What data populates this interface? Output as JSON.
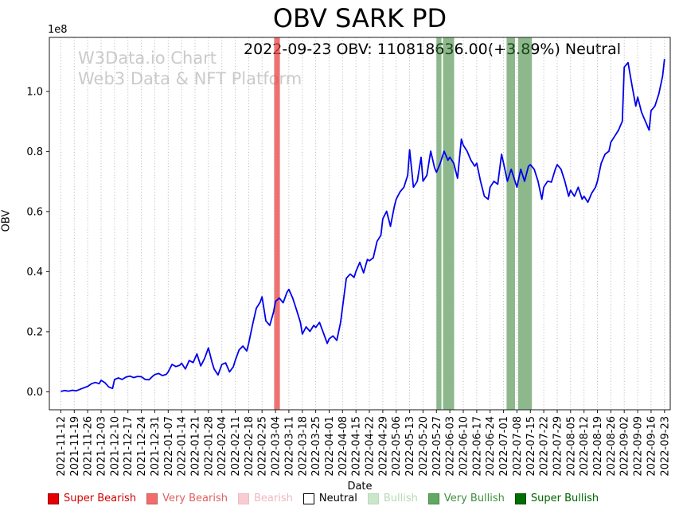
{
  "title": "OBV SARK PD",
  "annotation": "2022-09-23 OBV: 110818636.00(+3.89%) Neutral",
  "watermark": {
    "line1": "W3Data.io Chart",
    "line2": "Web3 Data & NFT Platform"
  },
  "chart_data": {
    "type": "line",
    "title": "OBV SARK PD",
    "xlabel": "Date",
    "ylabel": "OBV",
    "offset_text": "1e8",
    "grid": "vertical-dotted",
    "grid_color": "#ababab",
    "x_unit": "days since 2021-11-12",
    "x_tick_interval_days": 7,
    "xlim": [
      -6,
      318
    ],
    "ylim": [
      -0.06,
      1.18
    ],
    "y_ticks": [
      0.0,
      0.2,
      0.4,
      0.6,
      0.8,
      1.0
    ],
    "y_tick_labels": [
      "0.0",
      "0.2",
      "0.4",
      "0.6",
      "0.8",
      "1.0"
    ],
    "x_tick_labels": [
      "2021-11-12",
      "2021-11-19",
      "2021-11-26",
      "2021-12-03",
      "2021-12-10",
      "2021-12-17",
      "2021-12-24",
      "2021-12-31",
      "2022-01-07",
      "2022-01-14",
      "2022-01-21",
      "2022-01-28",
      "2022-02-04",
      "2022-02-11",
      "2022-02-18",
      "2022-02-25",
      "2022-03-04",
      "2022-03-11",
      "2022-03-18",
      "2022-03-25",
      "2022-04-01",
      "2022-04-08",
      "2022-04-15",
      "2022-04-22",
      "2022-04-29",
      "2022-05-06",
      "2022-05-13",
      "2022-05-20",
      "2022-05-27",
      "2022-06-03",
      "2022-06-10",
      "2022-06-17",
      "2022-06-24",
      "2022-07-01",
      "2022-07-08",
      "2022-07-15",
      "2022-07-22",
      "2022-07-29",
      "2022-08-05",
      "2022-08-12",
      "2022-08-19",
      "2022-08-26",
      "2022-09-02",
      "2022-09-09",
      "2022-09-16",
      "2022-09-23"
    ],
    "series": [
      {
        "name": "OBV",
        "color": "#0000ee",
        "value_scale": "1e8",
        "last_value": 110818636.0,
        "last_change_pct": 3.89,
        "last_signal": "Neutral",
        "points": [
          [
            0,
            0.001
          ],
          [
            2,
            0.004
          ],
          [
            4,
            0.002
          ],
          [
            6,
            0.005
          ],
          [
            8,
            0.003
          ],
          [
            10,
            0.008
          ],
          [
            12,
            0.013
          ],
          [
            14,
            0.018
          ],
          [
            16,
            0.027
          ],
          [
            18,
            0.031
          ],
          [
            20,
            0.027
          ],
          [
            21,
            0.038
          ],
          [
            23,
            0.03
          ],
          [
            25,
            0.016
          ],
          [
            27,
            0.011
          ],
          [
            28,
            0.041
          ],
          [
            30,
            0.046
          ],
          [
            32,
            0.041
          ],
          [
            34,
            0.049
          ],
          [
            36,
            0.052
          ],
          [
            38,
            0.047
          ],
          [
            40,
            0.051
          ],
          [
            42,
            0.05
          ],
          [
            44,
            0.041
          ],
          [
            46,
            0.04
          ],
          [
            48,
            0.052
          ],
          [
            49,
            0.057
          ],
          [
            51,
            0.061
          ],
          [
            53,
            0.054
          ],
          [
            55,
            0.058
          ],
          [
            56,
            0.066
          ],
          [
            58,
            0.091
          ],
          [
            60,
            0.084
          ],
          [
            62,
            0.088
          ],
          [
            63,
            0.095
          ],
          [
            65,
            0.076
          ],
          [
            67,
            0.104
          ],
          [
            69,
            0.097
          ],
          [
            71,
            0.126
          ],
          [
            73,
            0.086
          ],
          [
            75,
            0.111
          ],
          [
            77,
            0.146
          ],
          [
            79,
            0.096
          ],
          [
            80,
            0.076
          ],
          [
            82,
            0.056
          ],
          [
            84,
            0.091
          ],
          [
            86,
            0.096
          ],
          [
            88,
            0.066
          ],
          [
            90,
            0.083
          ],
          [
            91,
            0.104
          ],
          [
            93,
            0.139
          ],
          [
            95,
            0.152
          ],
          [
            97,
            0.136
          ],
          [
            98,
            0.161
          ],
          [
            100,
            0.222
          ],
          [
            102,
            0.278
          ],
          [
            104,
            0.298
          ],
          [
            105,
            0.316
          ],
          [
            107,
            0.236
          ],
          [
            109,
            0.221
          ],
          [
            111,
            0.266
          ],
          [
            112,
            0.301
          ],
          [
            114,
            0.312
          ],
          [
            116,
            0.296
          ],
          [
            118,
            0.331
          ],
          [
            119,
            0.341
          ],
          [
            121,
            0.312
          ],
          [
            123,
            0.272
          ],
          [
            125,
            0.231
          ],
          [
            126,
            0.192
          ],
          [
            128,
            0.216
          ],
          [
            130,
            0.201
          ],
          [
            132,
            0.221
          ],
          [
            133,
            0.214
          ],
          [
            135,
            0.231
          ],
          [
            137,
            0.196
          ],
          [
            139,
            0.161
          ],
          [
            140,
            0.176
          ],
          [
            142,
            0.186
          ],
          [
            144,
            0.171
          ],
          [
            146,
            0.231
          ],
          [
            147,
            0.281
          ],
          [
            149,
            0.378
          ],
          [
            151,
            0.392
          ],
          [
            153,
            0.381
          ],
          [
            154,
            0.401
          ],
          [
            156,
            0.431
          ],
          [
            158,
            0.396
          ],
          [
            160,
            0.441
          ],
          [
            161,
            0.436
          ],
          [
            163,
            0.446
          ],
          [
            165,
            0.501
          ],
          [
            167,
            0.521
          ],
          [
            168,
            0.576
          ],
          [
            170,
            0.601
          ],
          [
            172,
            0.551
          ],
          [
            174,
            0.616
          ],
          [
            175,
            0.641
          ],
          [
            177,
            0.666
          ],
          [
            179,
            0.681
          ],
          [
            181,
            0.721
          ],
          [
            182,
            0.806
          ],
          [
            184,
            0.681
          ],
          [
            186,
            0.701
          ],
          [
            188,
            0.781
          ],
          [
            189,
            0.701
          ],
          [
            191,
            0.721
          ],
          [
            193,
            0.801
          ],
          [
            195,
            0.746
          ],
          [
            196,
            0.731
          ],
          [
            198,
            0.761
          ],
          [
            200,
            0.801
          ],
          [
            202,
            0.771
          ],
          [
            203,
            0.781
          ],
          [
            205,
            0.761
          ],
          [
            207,
            0.711
          ],
          [
            209,
            0.841
          ],
          [
            210,
            0.821
          ],
          [
            212,
            0.801
          ],
          [
            214,
            0.771
          ],
          [
            216,
            0.751
          ],
          [
            217,
            0.761
          ],
          [
            219,
            0.701
          ],
          [
            221,
            0.651
          ],
          [
            223,
            0.641
          ],
          [
            224,
            0.681
          ],
          [
            226,
            0.701
          ],
          [
            228,
            0.691
          ],
          [
            230,
            0.791
          ],
          [
            231,
            0.761
          ],
          [
            233,
            0.701
          ],
          [
            235,
            0.741
          ],
          [
            237,
            0.701
          ],
          [
            238,
            0.681
          ],
          [
            240,
            0.741
          ],
          [
            242,
            0.701
          ],
          [
            244,
            0.751
          ],
          [
            245,
            0.756
          ],
          [
            247,
            0.741
          ],
          [
            249,
            0.701
          ],
          [
            251,
            0.641
          ],
          [
            252,
            0.681
          ],
          [
            254,
            0.701
          ],
          [
            256,
            0.698
          ],
          [
            258,
            0.741
          ],
          [
            259,
            0.756
          ],
          [
            261,
            0.741
          ],
          [
            263,
            0.701
          ],
          [
            265,
            0.651
          ],
          [
            266,
            0.671
          ],
          [
            268,
            0.651
          ],
          [
            270,
            0.681
          ],
          [
            272,
            0.641
          ],
          [
            273,
            0.651
          ],
          [
            275,
            0.631
          ],
          [
            277,
            0.661
          ],
          [
            279,
            0.681
          ],
          [
            280,
            0.701
          ],
          [
            282,
            0.761
          ],
          [
            284,
            0.791
          ],
          [
            286,
            0.801
          ],
          [
            287,
            0.831
          ],
          [
            289,
            0.851
          ],
          [
            291,
            0.871
          ],
          [
            293,
            0.901
          ],
          [
            294,
            1.081
          ],
          [
            296,
            1.096
          ],
          [
            298,
            1.021
          ],
          [
            300,
            0.951
          ],
          [
            301,
            0.981
          ],
          [
            303,
            0.931
          ],
          [
            305,
            0.901
          ],
          [
            307,
            0.871
          ],
          [
            308,
            0.936
          ],
          [
            310,
            0.951
          ],
          [
            312,
            0.991
          ],
          [
            314,
            1.051
          ],
          [
            315,
            1.108
          ]
        ]
      }
    ],
    "bands": [
      {
        "name": "band-very-bearish",
        "label": "Very Bearish",
        "x0": 111.3,
        "x1": 114.3,
        "color": "#e84040",
        "opacity": 0.75
      },
      {
        "name": "band-very-bullish-1",
        "label": "Very Bullish",
        "x0": 196.0,
        "x1": 198.6,
        "color": "#2e7d2e",
        "opacity": 0.55
      },
      {
        "name": "band-very-bullish-2",
        "label": "Very Bullish",
        "x0": 199.4,
        "x1": 205.2,
        "color": "#2e7d2e",
        "opacity": 0.55
      },
      {
        "name": "band-very-bullish-3",
        "label": "Very Bullish",
        "x0": 232.6,
        "x1": 237.0,
        "color": "#2e7d2e",
        "opacity": 0.55
      },
      {
        "name": "band-very-bullish-4",
        "label": "Very Bullish",
        "x0": 238.6,
        "x1": 245.8,
        "color": "#2e7d2e",
        "opacity": 0.55
      }
    ]
  },
  "legend": {
    "items": [
      {
        "label": "Super Bearish",
        "swatch": "#e60000",
        "edge": "#990000",
        "text": "#d40000"
      },
      {
        "label": "Very Bearish",
        "swatch": "#f26c6c",
        "edge": "#c65a5a",
        "text": "#e06060"
      },
      {
        "label": "Bearish",
        "swatch": "#f9ccd3",
        "edge": "#eebac3",
        "text": "#f0b6c0"
      },
      {
        "label": "Neutral",
        "swatch": "#ffffff",
        "edge": "#000000",
        "text": "#000000"
      },
      {
        "label": "Bullish",
        "swatch": "#cce6cc",
        "edge": "#b8d8b8",
        "text": "#b7d8b7"
      },
      {
        "label": "Very Bullish",
        "swatch": "#61a861",
        "edge": "#4a8a4a",
        "text": "#3f8f3f"
      },
      {
        "label": "Super Bullish",
        "swatch": "#006e00",
        "edge": "#004d00",
        "text": "#006400"
      }
    ]
  }
}
